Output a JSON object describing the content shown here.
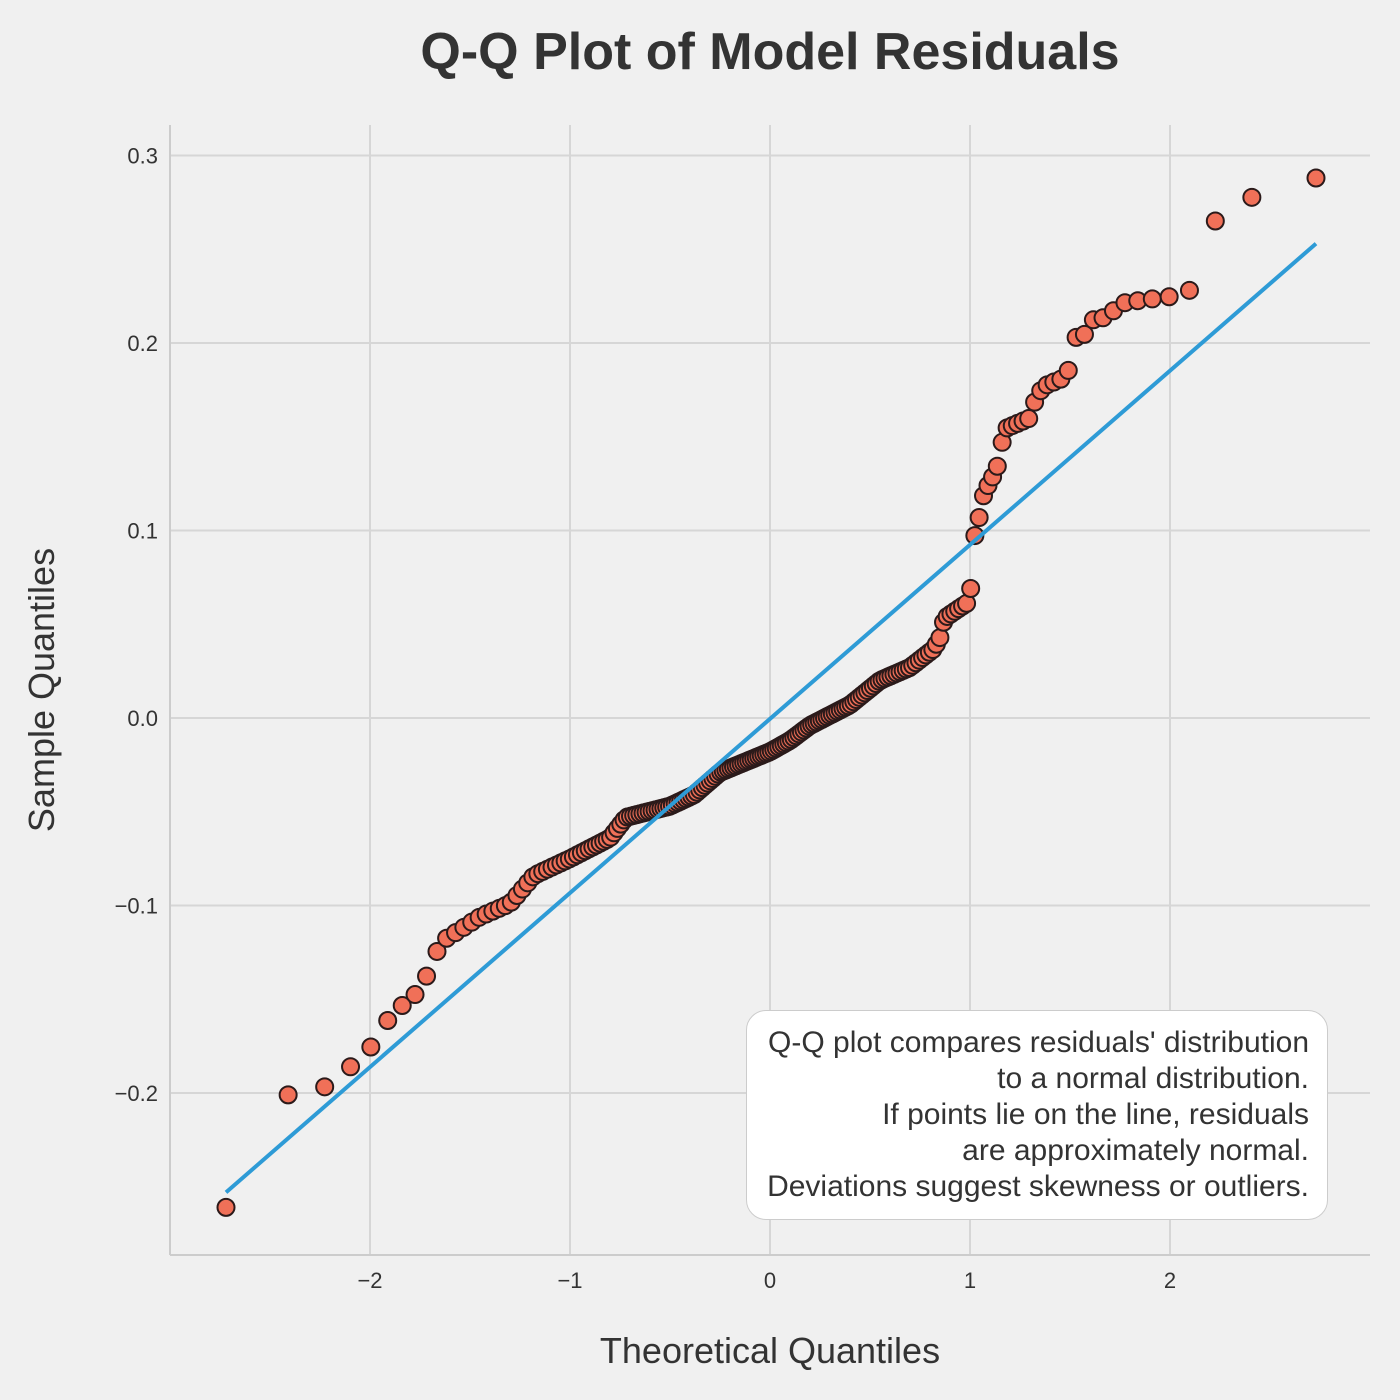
{
  "chart_data": {
    "type": "scatter",
    "title": "Q-Q Plot of Model Residuals",
    "xlabel": "Theoretical Quantiles",
    "ylabel": "Sample Quantiles",
    "xlim": [
      -3.0,
      3.0
    ],
    "ylim": [
      -0.285,
      0.318
    ],
    "x_ticks": [
      -2,
      -1,
      0,
      1,
      2
    ],
    "x_tick_labels": [
      "−2",
      "−1",
      "0",
      "1",
      "2"
    ],
    "y_ticks": [
      -0.2,
      -0.1,
      0.0,
      0.1,
      0.2,
      0.3
    ],
    "y_tick_labels": [
      "−0.2",
      "−0.1",
      "0.0",
      "0.1",
      "0.2",
      "0.3"
    ],
    "grid": true,
    "reference_line": {
      "x": [
        -2.72,
        2.73
      ],
      "y": [
        -0.253,
        0.253
      ],
      "color": "#2e9bd6"
    },
    "marker_color": "#f07058",
    "marker_edge_color": "#2b1a1a",
    "anchors": [
      [
        -2.72,
        -0.261
      ],
      [
        -2.41,
        -0.201
      ],
      [
        -2.23,
        -0.197
      ],
      [
        -2.11,
        -0.187
      ],
      [
        -2.02,
        -0.18
      ],
      [
        -1.94,
        -0.165
      ],
      [
        -1.87,
        -0.156
      ],
      [
        -1.8,
        -0.15
      ],
      [
        -1.74,
        -0.144
      ],
      [
        -1.69,
        -0.13
      ],
      [
        -1.64,
        -0.119
      ],
      [
        -1.55,
        -0.113
      ],
      [
        -1.45,
        -0.106
      ],
      [
        -1.3,
        -0.099
      ],
      [
        -1.18,
        -0.084
      ],
      [
        -1.0,
        -0.075
      ],
      [
        -0.8,
        -0.064
      ],
      [
        -0.72,
        -0.053
      ],
      [
        -0.5,
        -0.047
      ],
      [
        -0.38,
        -0.041
      ],
      [
        -0.25,
        -0.029
      ],
      [
        0.0,
        -0.018
      ],
      [
        0.1,
        -0.012
      ],
      [
        0.2,
        -0.004
      ],
      [
        0.4,
        0.007
      ],
      [
        0.55,
        0.02
      ],
      [
        0.7,
        0.027
      ],
      [
        0.82,
        0.037
      ],
      [
        0.86,
        0.045
      ],
      [
        0.87,
        0.053
      ],
      [
        0.98,
        0.061
      ],
      [
        1.0,
        0.062
      ],
      [
        1.01,
        0.083
      ],
      [
        1.03,
        0.103
      ],
      [
        1.05,
        0.108
      ],
      [
        1.07,
        0.12
      ],
      [
        1.13,
        0.132
      ],
      [
        1.15,
        0.139
      ],
      [
        1.17,
        0.154
      ],
      [
        1.3,
        0.16
      ],
      [
        1.33,
        0.171
      ],
      [
        1.37,
        0.177
      ],
      [
        1.46,
        0.181
      ],
      [
        1.51,
        0.188
      ],
      [
        1.53,
        0.203
      ],
      [
        1.57,
        0.204
      ],
      [
        1.6,
        0.212
      ],
      [
        1.69,
        0.214
      ],
      [
        1.75,
        0.221
      ],
      [
        1.8,
        0.222
      ],
      [
        2.02,
        0.225
      ],
      [
        2.12,
        0.229
      ],
      [
        2.25,
        0.273
      ],
      [
        2.42,
        0.278
      ],
      [
        2.73,
        0.288
      ]
    ],
    "n_points": 200
  },
  "annotation": {
    "lines": [
      "Q-Q plot compares residuals' distribution",
      "to a normal distribution.",
      "If points lie on the line, residuals",
      "are approximately normal.",
      "Deviations suggest skewness or outliers."
    ]
  }
}
